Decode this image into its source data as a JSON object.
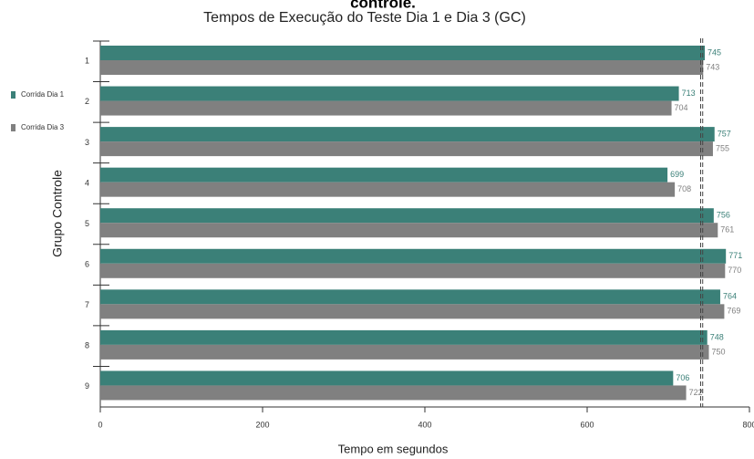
{
  "chart_data": {
    "type": "hbar",
    "caption_fragment": "controle.",
    "title": "Tempos de Execução do Teste Dia 1 e Dia 3 (GC)",
    "x_label": "Tempo em segundos",
    "y_label": "Grupo Controle",
    "categories": [
      "1",
      "2",
      "3",
      "4",
      "5",
      "6",
      "7",
      "8",
      "9"
    ],
    "series": [
      {
        "name": "Corrida Dia 1",
        "color": "#3b8078",
        "values": [
          745,
          713,
          757,
          699,
          756,
          771,
          764,
          748,
          706
        ]
      },
      {
        "name": "Corrida Dia 3",
        "color": "#808080",
        "values": [
          743,
          704,
          755,
          708,
          761,
          770,
          769,
          750,
          722
        ]
      }
    ],
    "xlim": [
      0,
      800
    ],
    "xticks": [
      0,
      200,
      400,
      600,
      800
    ],
    "reference_lines": [
      739.9,
      742.4
    ],
    "legend": "left"
  }
}
